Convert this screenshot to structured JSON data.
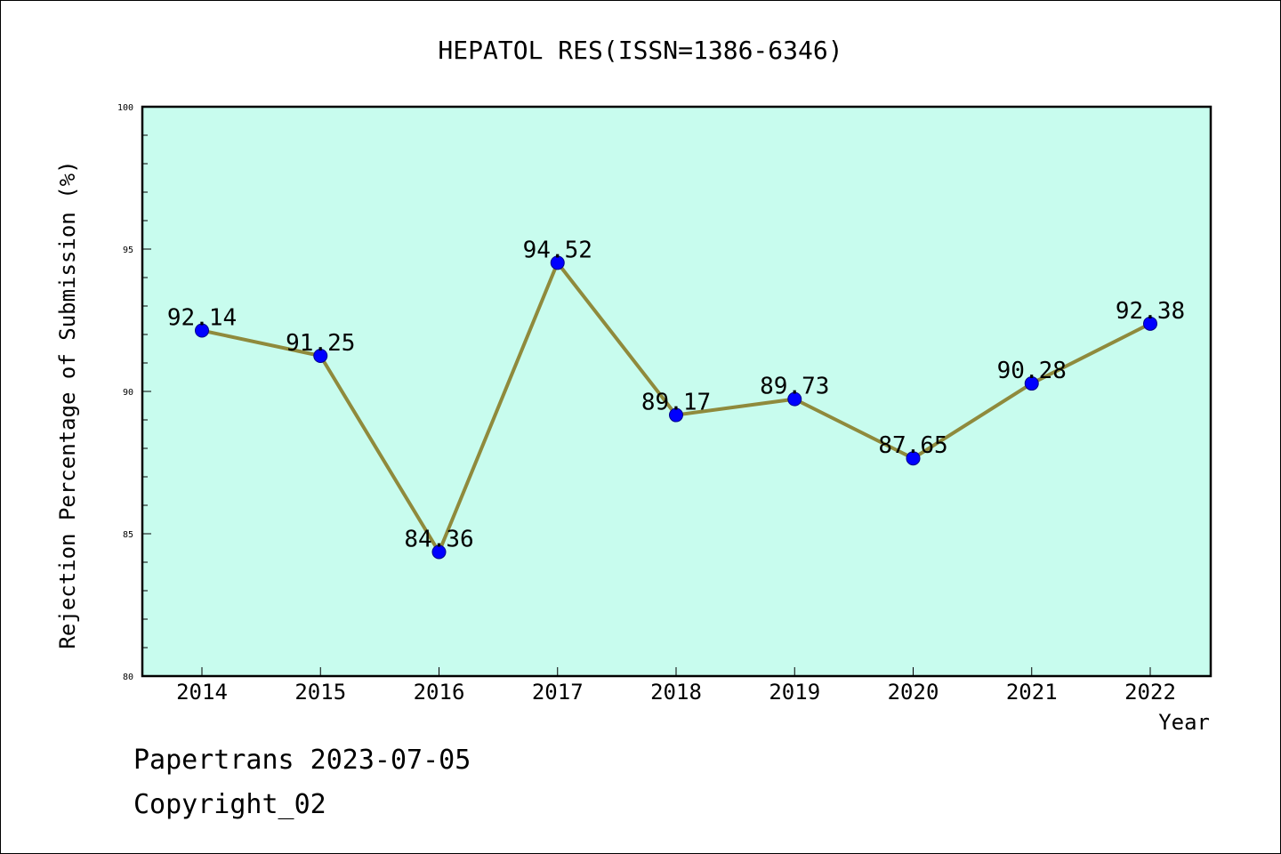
{
  "chart_data": {
    "type": "line",
    "title": "HEPATOL RES(ISSN=1386-6346)",
    "xlabel": "Year",
    "ylabel": "Rejection Percentage of Submission (%)",
    "categories": [
      "2014",
      "2015",
      "2016",
      "2017",
      "2018",
      "2019",
      "2020",
      "2021",
      "2022"
    ],
    "values": [
      92.14,
      91.25,
      84.36,
      94.52,
      89.17,
      89.73,
      87.65,
      90.28,
      92.38
    ],
    "data_labels": [
      "92.14",
      "91.25",
      "84.36",
      "94.52",
      "89.17",
      "89.73",
      "87.65",
      "90.28",
      "92.38"
    ],
    "ylim": [
      80,
      100
    ],
    "yticks": [
      "80",
      "85",
      "90",
      "95",
      "100"
    ],
    "grid": false,
    "legend": "none",
    "colors": {
      "plot_background": "#c8fcee",
      "line": "#8f8a3c",
      "marker": "#0000ff"
    }
  },
  "footer": {
    "line1": "Papertrans 2023-07-05",
    "line2": "Copyright_02"
  }
}
